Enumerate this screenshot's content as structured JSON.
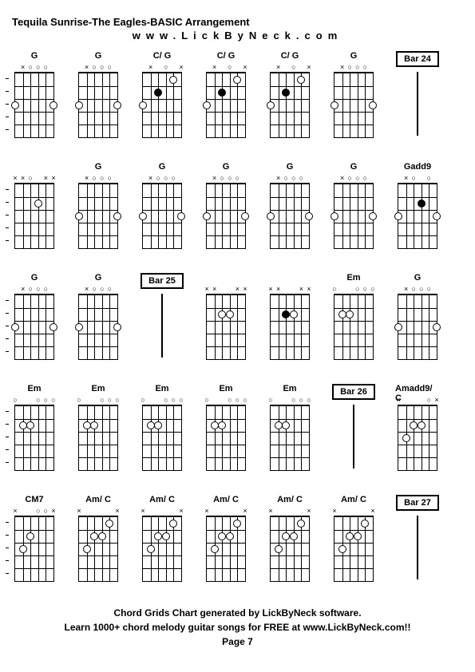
{
  "title": "Tequila Sunrise-The Eagles-BASIC Arrangement",
  "subtitle": "www.LickByNeck.com",
  "footer_line1": "Chord Grids Chart generated by LickByNeck software.",
  "footer_line2": "Learn 1000+ chord melody guitar songs for FREE at www.LickByNeck.com!!",
  "page": "Page 7",
  "colors": {
    "background": "#ffffff",
    "line": "#000000",
    "text": "#000000"
  },
  "fretboard": {
    "strings": 6,
    "frets": 5,
    "width": 48,
    "height": 80
  },
  "nut_symbols": {
    "x": "×",
    "o": "○",
    "dot": "◉"
  },
  "rows": [
    {
      "cells": [
        {
          "type": "chord",
          "label": "G",
          "nut": [
            "",
            "x",
            "o",
            "o",
            "o",
            ""
          ],
          "dots": [
            {
              "s": 0,
              "f": 3,
              "t": "o"
            },
            {
              "s": 5,
              "f": 3,
              "t": "o"
            }
          ],
          "ticks": true
        },
        {
          "type": "chord",
          "label": "G",
          "nut": [
            "",
            "x",
            "o",
            "o",
            "o",
            ""
          ],
          "dots": [
            {
              "s": 0,
              "f": 3,
              "t": "o"
            },
            {
              "s": 5,
              "f": 3,
              "t": "o"
            }
          ]
        },
        {
          "type": "chord",
          "label": "C/ G",
          "nut": [
            "",
            "x",
            "",
            "o",
            "",
            "x"
          ],
          "dots": [
            {
              "s": 0,
              "f": 3,
              "t": "o"
            },
            {
              "s": 2,
              "f": 2,
              "t": "f"
            },
            {
              "s": 4,
              "f": 1,
              "t": "o"
            }
          ]
        },
        {
          "type": "chord",
          "label": "C/ G",
          "nut": [
            "",
            "x",
            "",
            "o",
            "",
            "x"
          ],
          "dots": [
            {
              "s": 0,
              "f": 3,
              "t": "o"
            },
            {
              "s": 2,
              "f": 2,
              "t": "f"
            },
            {
              "s": 4,
              "f": 1,
              "t": "o"
            }
          ]
        },
        {
          "type": "chord",
          "label": "C/ G",
          "nut": [
            "",
            "x",
            "",
            "o",
            "",
            "x"
          ],
          "dots": [
            {
              "s": 0,
              "f": 3,
              "t": "o"
            },
            {
              "s": 2,
              "f": 2,
              "t": "f"
            },
            {
              "s": 4,
              "f": 1,
              "t": "o"
            }
          ]
        },
        {
          "type": "chord",
          "label": "G",
          "nut": [
            "",
            "x",
            "o",
            "o",
            "o",
            ""
          ],
          "dots": [
            {
              "s": 0,
              "f": 3,
              "t": "o"
            },
            {
              "s": 5,
              "f": 3,
              "t": "o"
            }
          ]
        },
        {
          "type": "bar",
          "label": "Bar 24"
        }
      ]
    },
    {
      "cells": [
        {
          "type": "chord",
          "label": "",
          "nut": [
            "x",
            "x",
            "o",
            "",
            "x",
            "x"
          ],
          "dots": [
            {
              "s": 3,
              "f": 2,
              "t": "o"
            }
          ],
          "ticks": true
        },
        {
          "type": "chord",
          "label": "G",
          "nut": [
            "",
            "x",
            "o",
            "o",
            "o",
            ""
          ],
          "dots": [
            {
              "s": 0,
              "f": 3,
              "t": "o"
            },
            {
              "s": 5,
              "f": 3,
              "t": "o"
            }
          ]
        },
        {
          "type": "chord",
          "label": "G",
          "nut": [
            "",
            "x",
            "o",
            "o",
            "o",
            ""
          ],
          "dots": [
            {
              "s": 0,
              "f": 3,
              "t": "o"
            },
            {
              "s": 5,
              "f": 3,
              "t": "o"
            }
          ]
        },
        {
          "type": "chord",
          "label": "G",
          "nut": [
            "",
            "x",
            "o",
            "o",
            "o",
            ""
          ],
          "dots": [
            {
              "s": 0,
              "f": 3,
              "t": "o"
            },
            {
              "s": 5,
              "f": 3,
              "t": "o"
            }
          ]
        },
        {
          "type": "chord",
          "label": "G",
          "nut": [
            "",
            "x",
            "o",
            "o",
            "o",
            ""
          ],
          "dots": [
            {
              "s": 0,
              "f": 3,
              "t": "o"
            },
            {
              "s": 5,
              "f": 3,
              "t": "o"
            }
          ]
        },
        {
          "type": "chord",
          "label": "G",
          "nut": [
            "",
            "x",
            "o",
            "o",
            "o",
            ""
          ],
          "dots": [
            {
              "s": 0,
              "f": 3,
              "t": "o"
            },
            {
              "s": 5,
              "f": 3,
              "t": "o"
            }
          ]
        },
        {
          "type": "chord",
          "label": "Gadd9",
          "nut": [
            "",
            "x",
            "o",
            "",
            "o",
            ""
          ],
          "dots": [
            {
              "s": 0,
              "f": 3,
              "t": "o"
            },
            {
              "s": 3,
              "f": 2,
              "t": "f"
            },
            {
              "s": 5,
              "f": 3,
              "t": "o"
            }
          ]
        }
      ]
    },
    {
      "cells": [
        {
          "type": "chord",
          "label": "G",
          "nut": [
            "",
            "x",
            "o",
            "o",
            "o",
            ""
          ],
          "dots": [
            {
              "s": 0,
              "f": 3,
              "t": "o"
            },
            {
              "s": 5,
              "f": 3,
              "t": "o"
            }
          ],
          "ticks": true
        },
        {
          "type": "chord",
          "label": "G",
          "nut": [
            "",
            "x",
            "o",
            "o",
            "o",
            ""
          ],
          "dots": [
            {
              "s": 0,
              "f": 3,
              "t": "o"
            },
            {
              "s": 5,
              "f": 3,
              "t": "o"
            }
          ]
        },
        {
          "type": "bar",
          "label": "Bar 25"
        },
        {
          "type": "chord",
          "label": "",
          "nut": [
            "x",
            "x",
            "",
            "",
            "x",
            "x"
          ],
          "dots": [
            {
              "s": 2,
              "f": 2,
              "t": "o"
            },
            {
              "s": 3,
              "f": 2,
              "t": "o"
            }
          ]
        },
        {
          "type": "chord",
          "label": "",
          "nut": [
            "x",
            "x",
            "",
            "",
            "x",
            "x"
          ],
          "dots": [
            {
              "s": 2,
              "f": 2,
              "t": "f"
            },
            {
              "s": 3,
              "f": 2,
              "t": "o"
            }
          ]
        },
        {
          "type": "chord",
          "label": "Em",
          "nut": [
            "o",
            "",
            "",
            "o",
            "o",
            "o"
          ],
          "dots": [
            {
              "s": 1,
              "f": 2,
              "t": "o"
            },
            {
              "s": 2,
              "f": 2,
              "t": "o"
            }
          ]
        },
        {
          "type": "chord",
          "label": "G",
          "nut": [
            "",
            "x",
            "o",
            "o",
            "o",
            ""
          ],
          "dots": [
            {
              "s": 0,
              "f": 3,
              "t": "o"
            },
            {
              "s": 5,
              "f": 3,
              "t": "o"
            }
          ]
        }
      ]
    },
    {
      "cells": [
        {
          "type": "chord",
          "label": "Em",
          "nut": [
            "o",
            "",
            "",
            "o",
            "o",
            "o"
          ],
          "dots": [
            {
              "s": 1,
              "f": 2,
              "t": "o"
            },
            {
              "s": 2,
              "f": 2,
              "t": "o"
            }
          ],
          "ticks": true
        },
        {
          "type": "chord",
          "label": "Em",
          "nut": [
            "o",
            "",
            "",
            "o",
            "o",
            "o"
          ],
          "dots": [
            {
              "s": 1,
              "f": 2,
              "t": "o"
            },
            {
              "s": 2,
              "f": 2,
              "t": "o"
            }
          ]
        },
        {
          "type": "chord",
          "label": "Em",
          "nut": [
            "o",
            "",
            "",
            "o",
            "o",
            "o"
          ],
          "dots": [
            {
              "s": 1,
              "f": 2,
              "t": "o"
            },
            {
              "s": 2,
              "f": 2,
              "t": "o"
            }
          ]
        },
        {
          "type": "chord",
          "label": "Em",
          "nut": [
            "o",
            "",
            "",
            "o",
            "o",
            "o"
          ],
          "dots": [
            {
              "s": 1,
              "f": 2,
              "t": "o"
            },
            {
              "s": 2,
              "f": 2,
              "t": "o"
            }
          ]
        },
        {
          "type": "chord",
          "label": "Em",
          "nut": [
            "o",
            "",
            "",
            "o",
            "o",
            "o"
          ],
          "dots": [
            {
              "s": 1,
              "f": 2,
              "t": "o"
            },
            {
              "s": 2,
              "f": 2,
              "t": "o"
            }
          ]
        },
        {
          "type": "bar",
          "label": "Bar 26"
        },
        {
          "type": "chord",
          "label": "Amadd9/ C",
          "nut": [
            "x",
            "",
            "",
            "",
            "o",
            "x"
          ],
          "dots": [
            {
              "s": 1,
              "f": 3,
              "t": "o"
            },
            {
              "s": 2,
              "f": 2,
              "t": "o"
            },
            {
              "s": 3,
              "f": 2,
              "t": "o"
            }
          ]
        }
      ]
    },
    {
      "cells": [
        {
          "type": "chord",
          "label": "CM7",
          "nut": [
            "x",
            "",
            "",
            "o",
            "o",
            "x"
          ],
          "dots": [
            {
              "s": 1,
              "f": 3,
              "t": "o"
            },
            {
              "s": 2,
              "f": 2,
              "t": "o"
            }
          ],
          "ticks": true
        },
        {
          "type": "chord",
          "label": "Am/ C",
          "nut": [
            "x",
            "",
            "",
            "",
            "",
            "x"
          ],
          "dots": [
            {
              "s": 1,
              "f": 3,
              "t": "o"
            },
            {
              "s": 2,
              "f": 2,
              "t": "o"
            },
            {
              "s": 3,
              "f": 2,
              "t": "o"
            },
            {
              "s": 4,
              "f": 1,
              "t": "o"
            }
          ]
        },
        {
          "type": "chord",
          "label": "Am/ C",
          "nut": [
            "x",
            "",
            "",
            "",
            "",
            "x"
          ],
          "dots": [
            {
              "s": 1,
              "f": 3,
              "t": "o"
            },
            {
              "s": 2,
              "f": 2,
              "t": "o"
            },
            {
              "s": 3,
              "f": 2,
              "t": "o"
            },
            {
              "s": 4,
              "f": 1,
              "t": "o"
            }
          ]
        },
        {
          "type": "chord",
          "label": "Am/ C",
          "nut": [
            "x",
            "",
            "",
            "",
            "",
            "x"
          ],
          "dots": [
            {
              "s": 1,
              "f": 3,
              "t": "o"
            },
            {
              "s": 2,
              "f": 2,
              "t": "o"
            },
            {
              "s": 3,
              "f": 2,
              "t": "o"
            },
            {
              "s": 4,
              "f": 1,
              "t": "o"
            }
          ]
        },
        {
          "type": "chord",
          "label": "Am/ C",
          "nut": [
            "x",
            "",
            "",
            "",
            "",
            "x"
          ],
          "dots": [
            {
              "s": 1,
              "f": 3,
              "t": "o"
            },
            {
              "s": 2,
              "f": 2,
              "t": "o"
            },
            {
              "s": 3,
              "f": 2,
              "t": "o"
            },
            {
              "s": 4,
              "f": 1,
              "t": "o"
            }
          ]
        },
        {
          "type": "chord",
          "label": "Am/ C",
          "nut": [
            "x",
            "",
            "",
            "",
            "",
            "x"
          ],
          "dots": [
            {
              "s": 1,
              "f": 3,
              "t": "o"
            },
            {
              "s": 2,
              "f": 2,
              "t": "o"
            },
            {
              "s": 3,
              "f": 2,
              "t": "o"
            },
            {
              "s": 4,
              "f": 1,
              "t": "o"
            }
          ]
        },
        {
          "type": "bar",
          "label": "Bar 27"
        }
      ]
    }
  ]
}
